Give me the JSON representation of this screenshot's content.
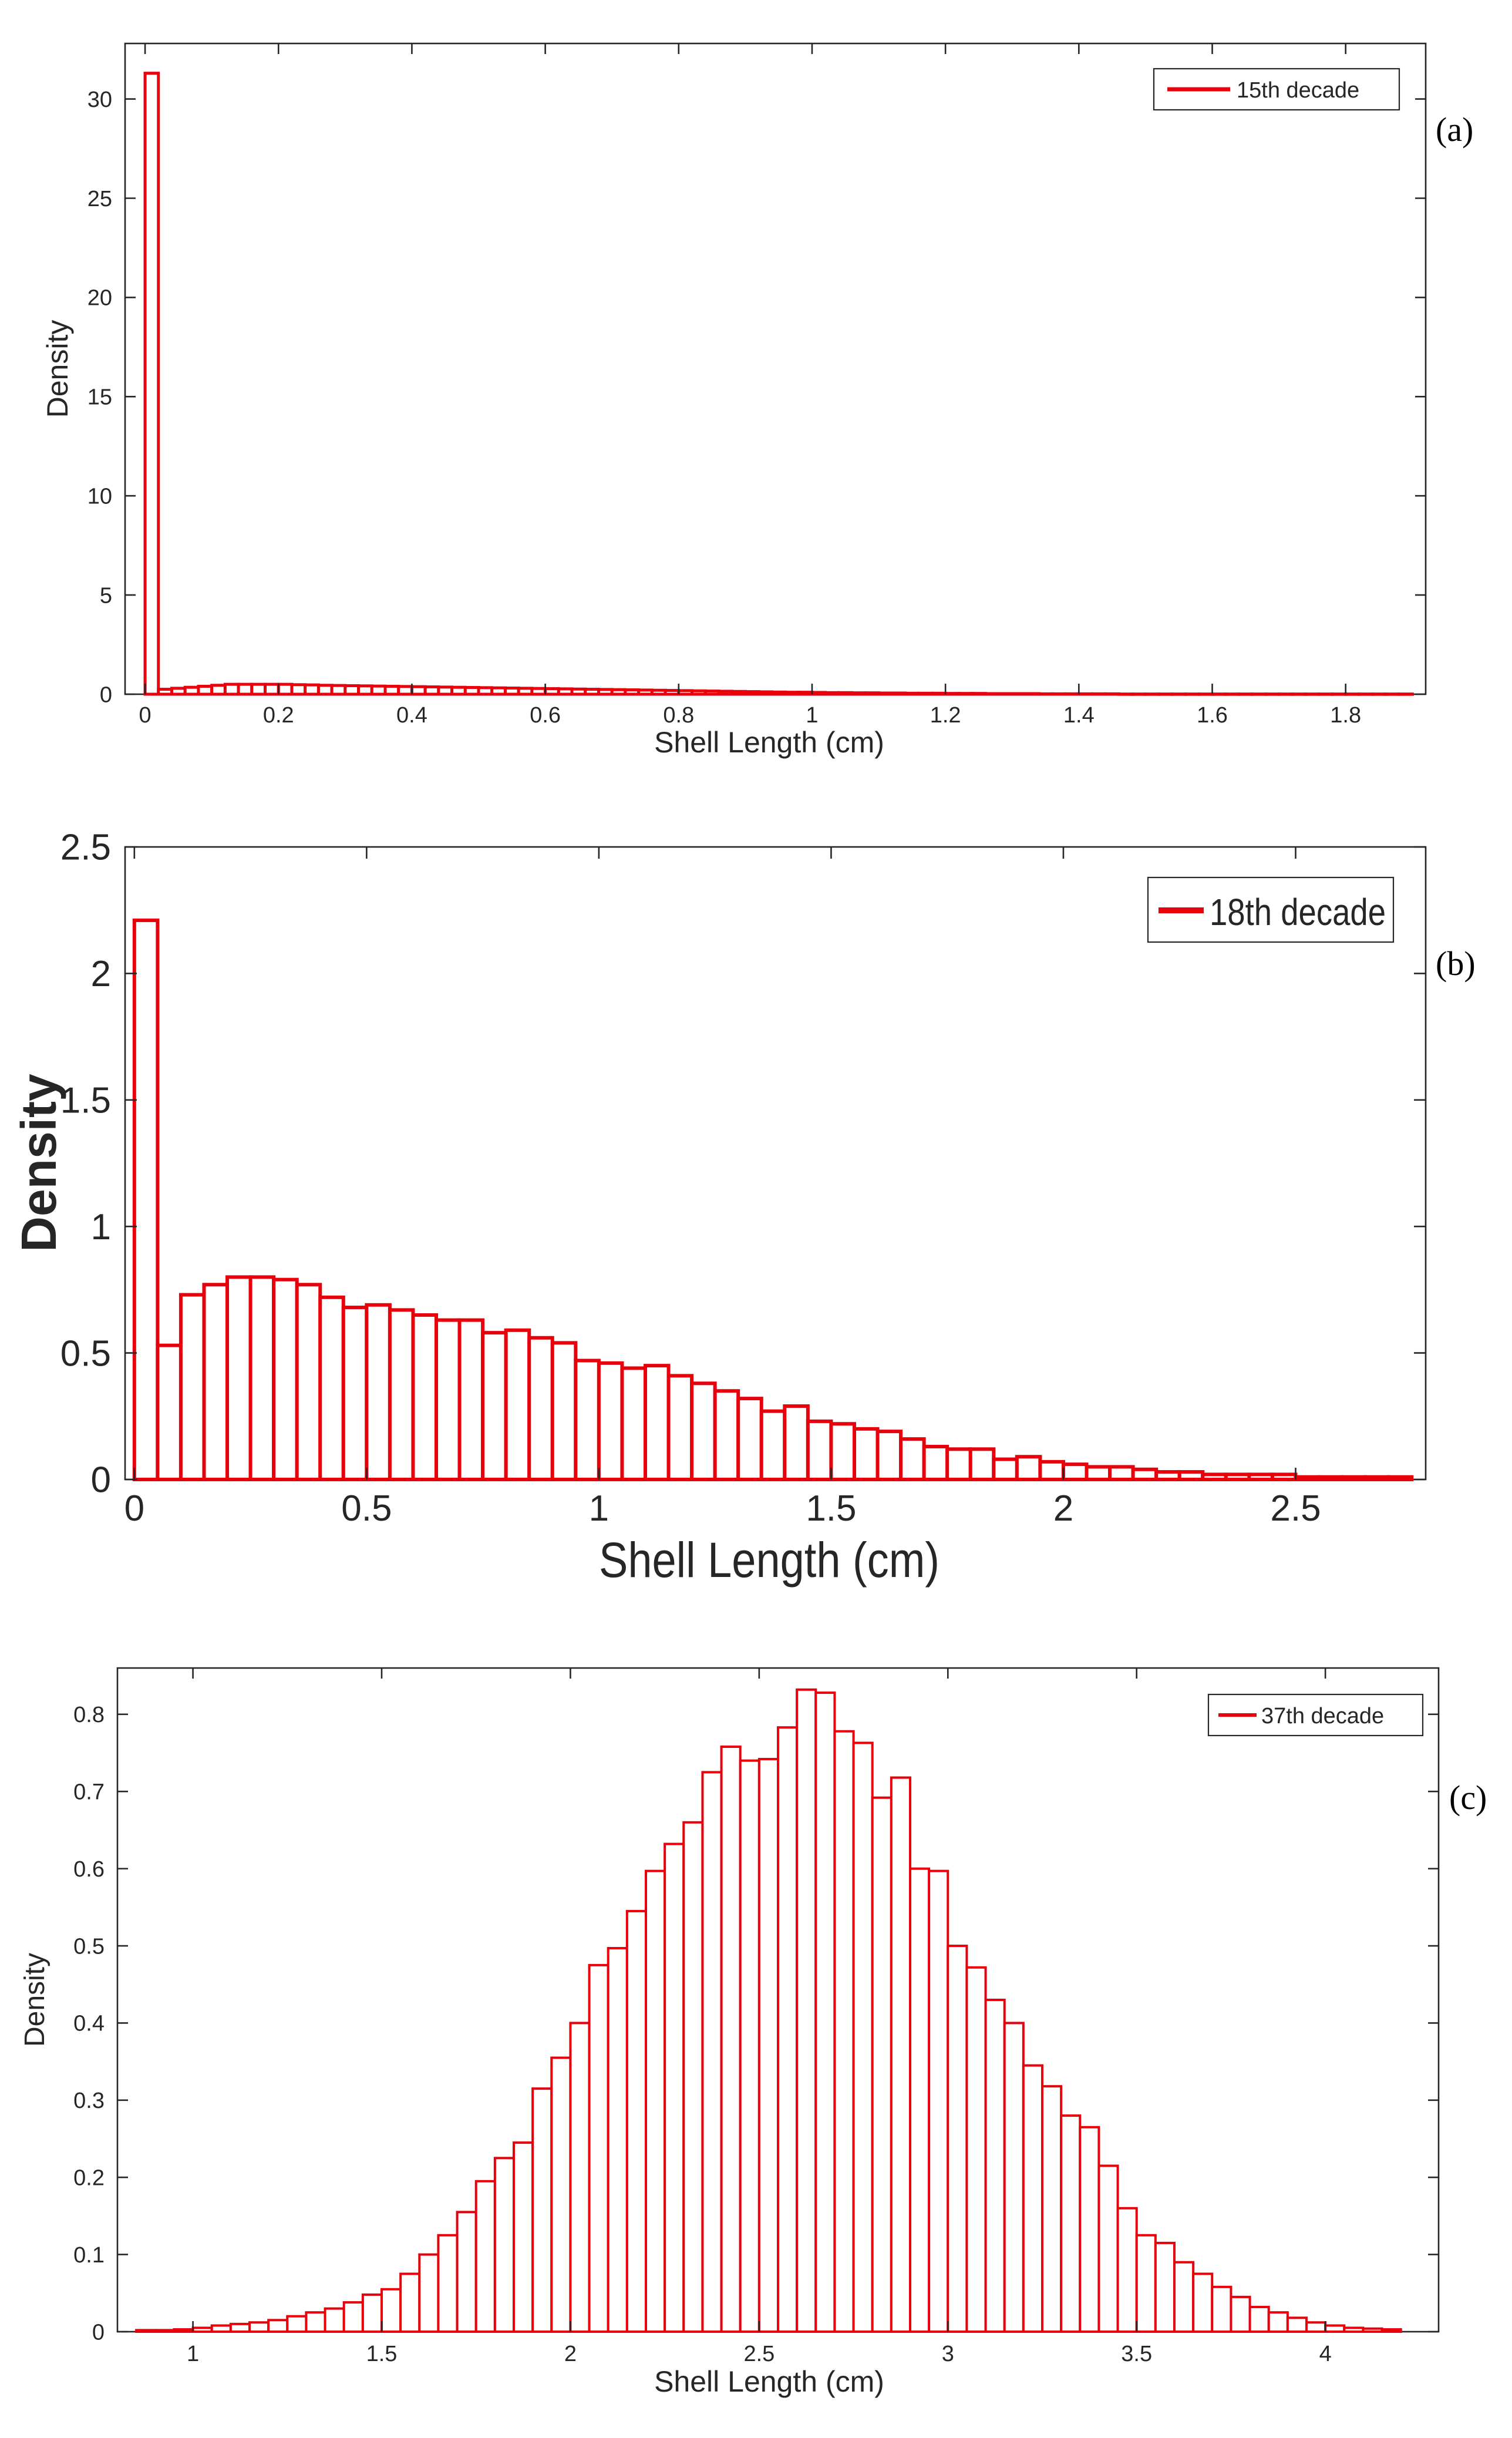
{
  "chart_data": [
    {
      "panel": "(a)",
      "type": "bar",
      "subtype": "histogram",
      "legend": "15th decade",
      "legend_position": "top-right",
      "xlabel": "Shell Length (cm)",
      "ylabel": "Density",
      "xlim": [
        -0.03,
        1.92
      ],
      "ylim": [
        0,
        32.8
      ],
      "x_ticks": [
        0,
        0.2,
        0.4,
        0.6,
        0.8,
        1,
        1.2,
        1.4,
        1.6,
        1.8
      ],
      "x_tick_labels": [
        "0",
        "0.2",
        "0.4",
        "0.6",
        "0.8",
        "1",
        "1.2",
        "1.4",
        "1.6",
        "1.8"
      ],
      "y_ticks": [
        0,
        5,
        10,
        15,
        20,
        25,
        30
      ],
      "y_tick_labels": [
        "0",
        "5",
        "10",
        "15",
        "20",
        "25",
        "30"
      ],
      "bin_start": 0,
      "bin_width": 0.02,
      "values": [
        31.3,
        0.25,
        0.3,
        0.35,
        0.4,
        0.45,
        0.5,
        0.5,
        0.5,
        0.5,
        0.5,
        0.48,
        0.47,
        0.45,
        0.44,
        0.43,
        0.42,
        0.41,
        0.4,
        0.39,
        0.38,
        0.37,
        0.36,
        0.35,
        0.34,
        0.33,
        0.32,
        0.31,
        0.3,
        0.29,
        0.28,
        0.27,
        0.26,
        0.25,
        0.24,
        0.23,
        0.22,
        0.21,
        0.2,
        0.19,
        0.18,
        0.17,
        0.16,
        0.15,
        0.14,
        0.13,
        0.12,
        0.11,
        0.1,
        0.1,
        0.09,
        0.08,
        0.08,
        0.07,
        0.07,
        0.06,
        0.06,
        0.05,
        0.05,
        0.05,
        0.04,
        0.04,
        0.04,
        0.03,
        0.03,
        0.03,
        0.03,
        0.02,
        0.02,
        0.02,
        0.02,
        0.02,
        0.02,
        0.01,
        0.01,
        0.01,
        0.01,
        0.01,
        0.01,
        0.01,
        0.01,
        0.01,
        0.01,
        0.01,
        0.01,
        0.01,
        0.01,
        0.01,
        0.01,
        0.01,
        0.01,
        0.01,
        0.01,
        0.01,
        0.01
      ]
    },
    {
      "panel": "(b)",
      "type": "bar",
      "subtype": "histogram",
      "legend": "18th decade",
      "legend_position": "top-right",
      "xlabel": "Shell Length (cm)",
      "ylabel": "Density",
      "xlim": [
        -0.02,
        2.78
      ],
      "ylim": [
        0,
        2.5
      ],
      "x_ticks": [
        0,
        0.5,
        1,
        1.5,
        2,
        2.5
      ],
      "x_tick_labels": [
        "0",
        "0.5",
        "1",
        "1.5",
        "2",
        "2.5"
      ],
      "y_ticks": [
        0,
        0.5,
        1,
        1.5,
        2,
        2.5
      ],
      "y_tick_labels": [
        "0",
        "0.5",
        "1",
        "1.5",
        "2",
        "2.5"
      ],
      "bin_start": 0,
      "bin_width": 0.05,
      "values": [
        2.21,
        0.53,
        0.73,
        0.77,
        0.8,
        0.8,
        0.79,
        0.77,
        0.72,
        0.68,
        0.69,
        0.67,
        0.65,
        0.63,
        0.63,
        0.58,
        0.59,
        0.56,
        0.54,
        0.47,
        0.46,
        0.44,
        0.45,
        0.41,
        0.38,
        0.35,
        0.32,
        0.27,
        0.29,
        0.23,
        0.22,
        0.2,
        0.19,
        0.16,
        0.13,
        0.12,
        0.12,
        0.08,
        0.09,
        0.07,
        0.06,
        0.05,
        0.05,
        0.04,
        0.03,
        0.03,
        0.02,
        0.02,
        0.02,
        0.02,
        0.01,
        0.01,
        0.01,
        0.01,
        0.01
      ]
    },
    {
      "panel": "(c)",
      "type": "bar",
      "subtype": "histogram",
      "legend": "37th decade",
      "legend_position": "top-right",
      "xlabel": "Shell Length (cm)",
      "ylabel": "Density",
      "xlim": [
        0.8,
        4.3
      ],
      "ylim": [
        0,
        0.86
      ],
      "x_ticks": [
        1,
        1.5,
        2,
        2.5,
        3,
        3.5,
        4
      ],
      "x_tick_labels": [
        "1",
        "1.5",
        "2",
        "2.5",
        "3",
        "3.5",
        "4"
      ],
      "y_ticks": [
        0,
        0.1,
        0.2,
        0.3,
        0.4,
        0.5,
        0.6,
        0.7,
        0.8
      ],
      "y_tick_labels": [
        "0",
        "0.1",
        "0.2",
        "0.3",
        "0.4",
        "0.5",
        "0.6",
        "0.7",
        "0.8"
      ],
      "bin_start": 0.85,
      "bin_width": 0.05,
      "values": [
        0.002,
        0.002,
        0.003,
        0.005,
        0.008,
        0.01,
        0.012,
        0.015,
        0.02,
        0.025,
        0.03,
        0.038,
        0.048,
        0.055,
        0.075,
        0.1,
        0.125,
        0.155,
        0.195,
        0.225,
        0.245,
        0.315,
        0.355,
        0.4,
        0.475,
        0.497,
        0.545,
        0.597,
        0.632,
        0.66,
        0.725,
        0.758,
        0.74,
        0.742,
        0.783,
        0.832,
        0.828,
        0.778,
        0.763,
        0.692,
        0.718,
        0.6,
        0.597,
        0.5,
        0.472,
        0.43,
        0.4,
        0.345,
        0.318,
        0.28,
        0.265,
        0.215,
        0.16,
        0.125,
        0.115,
        0.09,
        0.075,
        0.058,
        0.045,
        0.032,
        0.025,
        0.018,
        0.012,
        0.008,
        0.005,
        0.004,
        0.003
      ]
    }
  ]
}
